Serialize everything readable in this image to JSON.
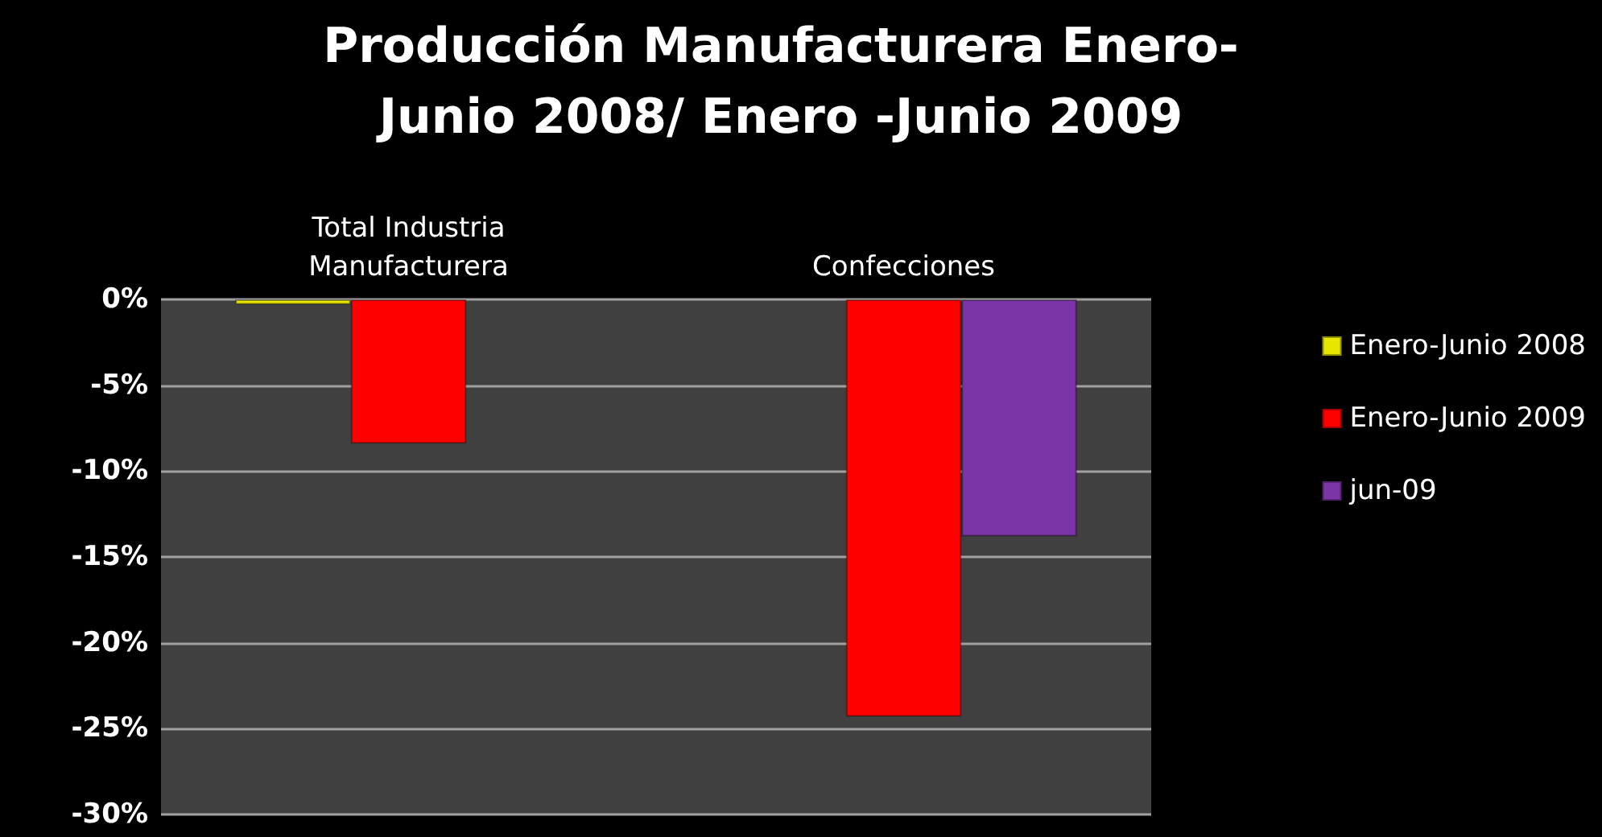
{
  "chart_data": {
    "type": "bar",
    "title": "Producción Manufacturera Enero-\nJunio 2008/ Enero -Junio 2009",
    "categories": [
      "Total Industria\nManufacturera",
      "Confecciones"
    ],
    "series": [
      {
        "name": "Enero-Junio 2008",
        "color": "#e6e600",
        "values": [
          -0.3,
          null
        ]
      },
      {
        "name": "Enero-Junio 2009",
        "color": "#ff0000",
        "values": [
          -8.4,
          -24.3
        ]
      },
      {
        "name": "jun-09",
        "color": "#7b35a8",
        "values": [
          null,
          -13.8
        ]
      }
    ],
    "ylim": [
      -30,
      0
    ],
    "yticks": [
      {
        "value": -30,
        "label": "-30%"
      },
      {
        "value": -25,
        "label": "-25%"
      },
      {
        "value": -20,
        "label": "-20%"
      },
      {
        "value": -15,
        "label": "-15%"
      },
      {
        "value": -10,
        "label": "-10%"
      },
      {
        "value": -5,
        "label": "-5%"
      },
      {
        "value": 0,
        "label": "0%"
      }
    ],
    "grid": "y",
    "legend": "right"
  }
}
